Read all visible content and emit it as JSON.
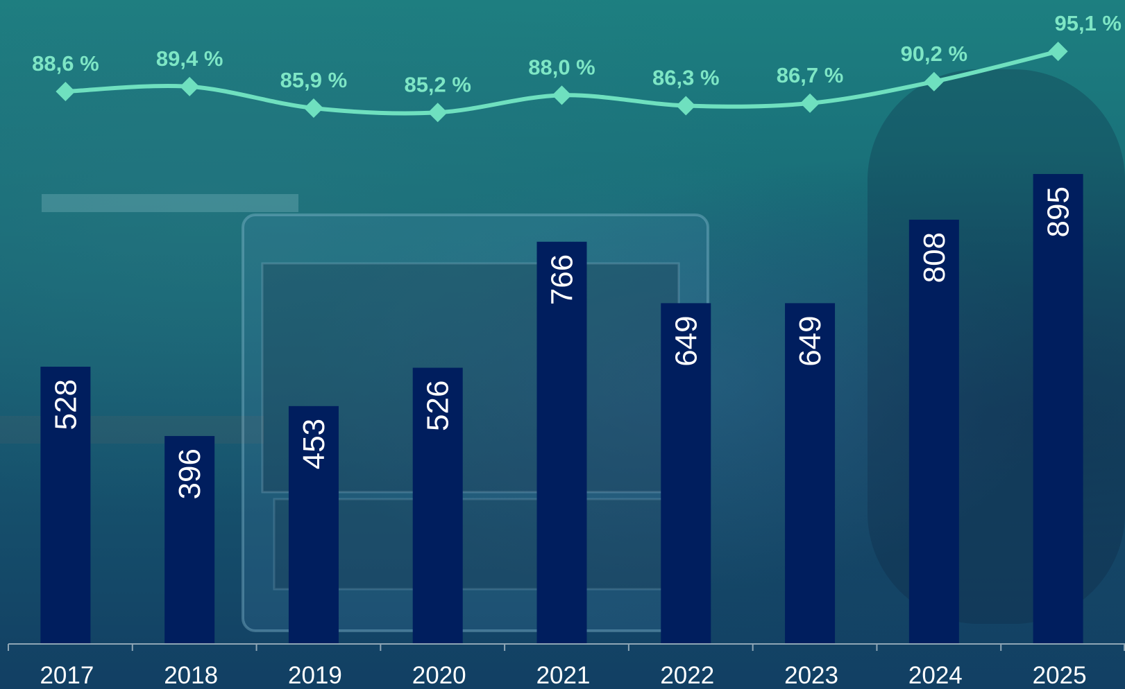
{
  "chart_data": {
    "type": "bar",
    "categories": [
      "2017",
      "2018",
      "2019",
      "2020",
      "2021",
      "2022",
      "2023",
      "2024",
      "2025"
    ],
    "series": [
      {
        "type": "bar",
        "values": [
          528,
          396,
          453,
          526,
          766,
          649,
          649,
          808,
          895
        ],
        "color": "#001e5e"
      },
      {
        "type": "line",
        "values": [
          88.6,
          89.4,
          85.9,
          85.2,
          88.0,
          86.3,
          86.7,
          90.2,
          95.1
        ],
        "color": "#6fe0bf"
      }
    ],
    "value_labels": [
      "528",
      "396",
      "453",
      "526",
      "766",
      "649",
      "649",
      "808",
      "895"
    ],
    "line_labels": [
      "88,6 %",
      "89,4 %",
      "85,9 %",
      "85,2 %",
      "88,0 %",
      "86,3 %",
      "86,7 %",
      "90,2 %",
      "95,1 %"
    ],
    "title": "",
    "xlabel": "",
    "ylabel": "",
    "ylim": [
      0,
      1100
    ],
    "line_ylim": [
      70,
      100
    ],
    "grid": false,
    "legend": "none"
  }
}
